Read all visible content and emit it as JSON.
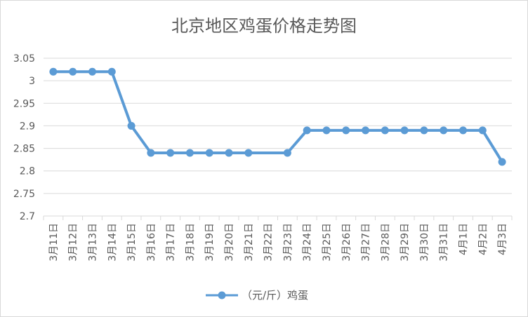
{
  "chart_data": {
    "type": "line",
    "title": "北京地区鸡蛋价格走势图",
    "xlabel": "",
    "ylabel": "",
    "ylim": [
      2.7,
      3.05
    ],
    "yticks": [
      "2.7",
      "2.75",
      "2.8",
      "2.85",
      "2.9",
      "2.95",
      "3",
      "3.05"
    ],
    "grid": true,
    "legend_position": "bottom",
    "categories": [
      "3月11日",
      "3月12日",
      "3月13日",
      "3月14日",
      "3月15日",
      "3月16日",
      "3月17日",
      "3月18日",
      "3月19日",
      "3月20日",
      "3月21日",
      "3月22日",
      "3月23日",
      "3月24日",
      "3月25日",
      "3月26日",
      "3月27日",
      "3月28日",
      "3月29日",
      "3月30日",
      "3月31日",
      "4月1日",
      "4月2日",
      "4月3日"
    ],
    "series": [
      {
        "name": "（元/斤）鸡蛋",
        "color": "#5b9bd5",
        "values": [
          3.02,
          3.02,
          3.02,
          3.02,
          2.9,
          2.84,
          2.84,
          2.84,
          2.84,
          2.84,
          2.84,
          null,
          2.84,
          2.89,
          2.89,
          2.89,
          2.89,
          2.89,
          2.89,
          2.89,
          2.89,
          2.89,
          2.89,
          2.82
        ]
      }
    ]
  }
}
